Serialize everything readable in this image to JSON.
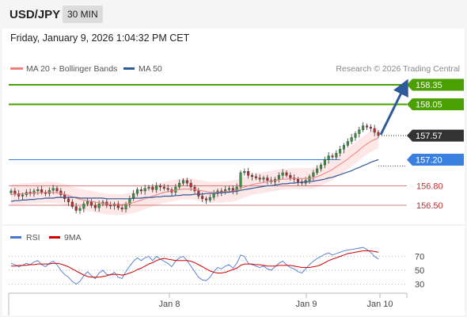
{
  "header": {
    "symbol": "USD/JPY",
    "timeframe": "30 MIN"
  },
  "timestamp": "Friday, January 9, 2026 1:04:32 PM CET",
  "legend": {
    "ma20_label": "MA 20 + Bollinger Bands",
    "ma50_label": "MA 50",
    "credit": "Research © 2026 Trading Central",
    "colors": {
      "ma20": "#f08080",
      "ma50": "#2e5a9a",
      "bands_fill": "#fde3e3"
    }
  },
  "rsi_legend": {
    "rsi_label": "RSI",
    "ma_label": "9MA",
    "colors": {
      "rsi": "#4a78d0",
      "ma": "#d00000"
    }
  },
  "chart_data": {
    "type": "candlestick",
    "symbol": "USD/JPY",
    "interval": "30 MIN",
    "price_range": [
      156.2,
      158.5
    ],
    "x_ticks": [
      "Jan 8",
      "Jan 9",
      "Jan 10"
    ],
    "price_levels": [
      {
        "value": 158.35,
        "label": "158.35",
        "style": "green-tag",
        "color": "#4aa000"
      },
      {
        "value": 158.05,
        "label": "158.05",
        "style": "green-tag",
        "color": "#4aa000"
      },
      {
        "value": 157.57,
        "label": "157.57",
        "style": "dark-tag",
        "color": "#333333"
      },
      {
        "value": 157.2,
        "label": "157.20",
        "style": "blue-tag",
        "color": "#3a80e0"
      },
      {
        "value": 156.8,
        "label": "156.80",
        "style": "red-text",
        "color": "#c03030"
      },
      {
        "value": 156.5,
        "label": "156.50",
        "style": "red-text",
        "color": "#c03030"
      }
    ],
    "arrow": {
      "from": 157.57,
      "to": 158.35,
      "color": "#2e5a9a"
    },
    "closes": [
      156.72,
      156.68,
      156.64,
      156.66,
      156.7,
      156.68,
      156.72,
      156.74,
      156.7,
      156.68,
      156.73,
      156.76,
      156.72,
      156.66,
      156.6,
      156.55,
      156.48,
      156.42,
      156.45,
      156.52,
      156.56,
      156.5,
      156.46,
      156.52,
      156.55,
      156.5,
      156.49,
      156.52,
      156.46,
      156.44,
      156.52,
      156.6,
      156.68,
      156.74,
      156.72,
      156.76,
      156.78,
      156.74,
      156.8,
      156.78,
      156.76,
      156.74,
      156.7,
      156.78,
      156.84,
      156.88,
      156.84,
      156.78,
      156.72,
      156.64,
      156.6,
      156.58,
      156.62,
      156.68,
      156.72,
      156.7,
      156.74,
      156.76,
      156.72,
      156.78,
      157.0,
      157.02,
      156.96,
      156.94,
      156.92,
      156.9,
      156.92,
      156.88,
      156.86,
      156.9,
      156.96,
      157.0,
      156.96,
      156.92,
      156.9,
      156.86,
      156.84,
      156.88,
      156.94,
      157.0,
      157.06,
      157.12,
      157.2,
      157.26,
      157.24,
      157.3,
      157.36,
      157.42,
      157.48,
      157.54,
      157.6,
      157.66,
      157.72,
      157.7,
      157.68,
      157.62,
      157.57
    ],
    "ma20": [
      156.66,
      156.67,
      156.67,
      156.68,
      156.68,
      156.68,
      156.69,
      156.69,
      156.69,
      156.7,
      156.7,
      156.7,
      156.69,
      156.68,
      156.67,
      156.65,
      156.63,
      156.61,
      156.59,
      156.58,
      156.57,
      156.56,
      156.55,
      156.54,
      156.53,
      156.52,
      156.51,
      156.51,
      156.51,
      156.51,
      156.52,
      156.53,
      156.54,
      156.56,
      156.58,
      156.6,
      156.62,
      156.64,
      156.66,
      156.68,
      156.7,
      156.71,
      156.72,
      156.73,
      156.74,
      156.75,
      156.75,
      156.75,
      156.74,
      156.73,
      156.72,
      156.71,
      156.7,
      156.7,
      156.7,
      156.7,
      156.71,
      156.71,
      156.72,
      156.73,
      156.76,
      156.78,
      156.8,
      156.82,
      156.83,
      156.84,
      156.85,
      156.86,
      156.87,
      156.88,
      156.89,
      156.9,
      156.9,
      156.91,
      156.91,
      156.91,
      156.91,
      156.91,
      156.91,
      156.92,
      156.94,
      156.96,
      156.99,
      157.02,
      157.05,
      157.09,
      157.13,
      157.17,
      157.21,
      157.26,
      157.3,
      157.35,
      157.4,
      157.44,
      157.48,
      157.51,
      157.53
    ],
    "ma50": [
      156.56,
      156.57,
      156.57,
      156.58,
      156.58,
      156.59,
      156.59,
      156.6,
      156.6,
      156.61,
      156.61,
      156.61,
      156.62,
      156.62,
      156.62,
      156.62,
      156.62,
      156.62,
      156.61,
      156.61,
      156.61,
      156.61,
      156.61,
      156.61,
      156.61,
      156.6,
      156.6,
      156.6,
      156.6,
      156.6,
      156.6,
      156.6,
      156.61,
      156.61,
      156.61,
      156.62,
      156.62,
      156.62,
      156.63,
      156.63,
      156.64,
      156.64,
      156.64,
      156.65,
      156.65,
      156.66,
      156.66,
      156.66,
      156.67,
      156.67,
      156.67,
      156.68,
      156.68,
      156.68,
      156.69,
      156.69,
      156.7,
      156.7,
      156.71,
      156.71,
      156.73,
      156.74,
      156.75,
      156.76,
      156.77,
      156.78,
      156.79,
      156.8,
      156.8,
      156.81,
      156.82,
      156.83,
      156.83,
      156.84,
      156.84,
      156.85,
      156.85,
      156.86,
      156.86,
      156.87,
      156.88,
      156.89,
      156.9,
      156.92,
      156.93,
      156.95,
      156.97,
      156.99,
      157.01,
      157.03,
      157.06,
      157.08,
      157.11,
      157.13,
      157.16,
      157.18,
      157.2
    ],
    "bb_width": 0.16,
    "rsi": {
      "levels": [
        70,
        50,
        30
      ],
      "level_labels": [
        "70",
        "50",
        "30"
      ],
      "range": [
        20,
        85
      ],
      "values": [
        60,
        58,
        55,
        57,
        60,
        58,
        62,
        64,
        58,
        55,
        60,
        63,
        58,
        50,
        44,
        40,
        34,
        30,
        34,
        42,
        48,
        42,
        38,
        46,
        50,
        44,
        43,
        47,
        40,
        38,
        48,
        56,
        63,
        68,
        64,
        68,
        70,
        64,
        70,
        66,
        63,
        60,
        55,
        63,
        68,
        70,
        64,
        56,
        48,
        40,
        36,
        35,
        40,
        48,
        54,
        52,
        56,
        58,
        53,
        60,
        72,
        70,
        60,
        58,
        56,
        54,
        56,
        52,
        50,
        55,
        60,
        63,
        58,
        54,
        52,
        48,
        46,
        52,
        58,
        63,
        67,
        70,
        73,
        75,
        72,
        74,
        76,
        78,
        79,
        80,
        81,
        82,
        83,
        80,
        76,
        70,
        66
      ],
      "ma9": [
        56,
        56,
        57,
        57,
        57,
        58,
        58,
        59,
        59,
        59,
        59,
        60,
        60,
        59,
        57,
        55,
        52,
        49,
        46,
        43,
        41,
        40,
        40,
        40,
        41,
        42,
        44,
        44,
        44,
        43,
        44,
        46,
        48,
        51,
        53,
        56,
        59,
        61,
        64,
        66,
        67,
        66,
        65,
        64,
        64,
        64,
        64,
        63,
        61,
        58,
        55,
        52,
        49,
        47,
        46,
        46,
        47,
        49,
        51,
        53,
        57,
        59,
        59,
        59,
        58,
        58,
        57,
        56,
        56,
        56,
        57,
        57,
        57,
        57,
        56,
        55,
        54,
        54,
        54,
        55,
        56,
        58,
        61,
        64,
        66,
        68,
        70,
        72,
        74,
        75,
        76,
        77,
        78,
        78,
        78,
        77,
        76
      ]
    }
  }
}
